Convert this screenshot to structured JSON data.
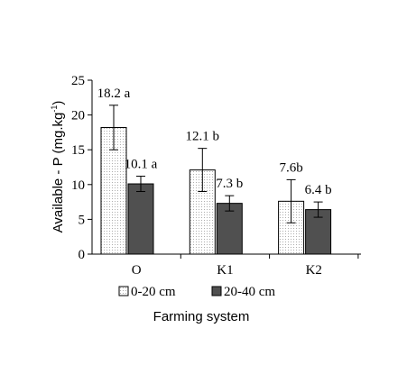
{
  "chart_data": {
    "type": "bar",
    "categories": [
      "O",
      "K1",
      "K2"
    ],
    "ylabel": "Available - P (mg.kg-1)",
    "ylabel_parts": {
      "main": "Available - P (mg.kg",
      "sup": "-1",
      "close": ")"
    },
    "xlabel": "Farming system",
    "ylim": [
      0,
      25
    ],
    "yticks": [
      "0",
      "5",
      "10",
      "15",
      "20",
      "25"
    ],
    "grid": false,
    "legend_position": "bottom",
    "series": [
      {
        "name": "0-20 cm",
        "values": [
          18.2,
          12.1,
          7.6
        ],
        "errors": [
          3.2,
          3.1,
          3.1
        ],
        "labels": [
          "18.2 a",
          "12.1 b",
          "7.6b"
        ],
        "fill": "#ffffff",
        "pattern": "dotted"
      },
      {
        "name": "20-40 cm",
        "values": [
          10.1,
          7.3,
          6.4
        ],
        "errors": [
          1.1,
          1.1,
          1.1
        ],
        "labels": [
          "10.1 a",
          "7.3 b",
          "6.4 b"
        ],
        "fill": "#505050",
        "pattern": "solid"
      }
    ]
  }
}
